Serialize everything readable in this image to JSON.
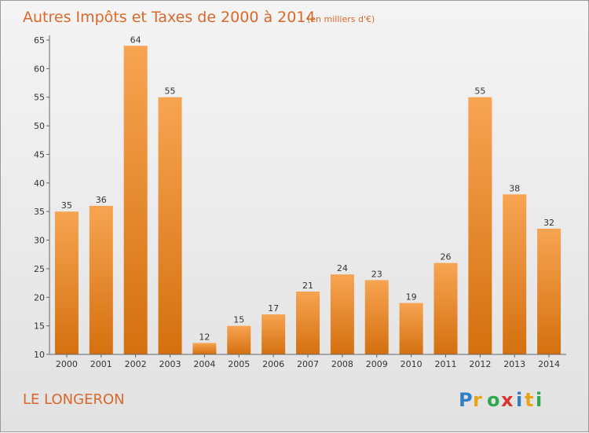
{
  "chart_data": {
    "type": "bar",
    "title": "Autres Impôts et Taxes de 2000 à 2014",
    "subtitle": "(en milliers d'€)",
    "categories": [
      "2000",
      "2001",
      "2002",
      "2003",
      "2004",
      "2005",
      "2006",
      "2007",
      "2008",
      "2009",
      "2010",
      "2011",
      "2012",
      "2013",
      "2014"
    ],
    "values": [
      35,
      36,
      64,
      55,
      12,
      15,
      17,
      21,
      24,
      23,
      19,
      26,
      55,
      38,
      32
    ],
    "ylim": [
      10,
      65
    ],
    "yticks": [
      10,
      15,
      20,
      25,
      30,
      35,
      40,
      45,
      50,
      55,
      60,
      65
    ],
    "grid": false,
    "colors": {
      "bar_top": "#f7a452",
      "bar_bottom": "#d4700f",
      "text": "#d9682a"
    }
  },
  "commune": "LE LONGERON",
  "logo": {
    "letters": [
      "P",
      "r",
      "o",
      "x",
      "i",
      "t",
      "i"
    ],
    "colors": [
      "#2f7fc2",
      "#e8a317",
      "#2fa84f",
      "#d9342b",
      "#2f7fc2",
      "#e8a317",
      "#2fa84f"
    ]
  }
}
